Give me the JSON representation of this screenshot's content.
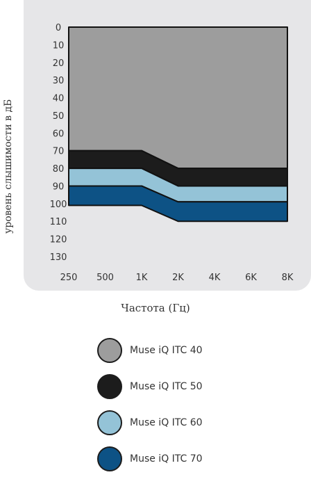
{
  "chart_data": {
    "type": "area",
    "categories": [
      "250",
      "500",
      "1K",
      "2K",
      "4K",
      "6K",
      "8K"
    ],
    "ylabel": "уровень слышимости в дБ",
    "xlabel": "Частота (Гц)",
    "ylim": [
      0,
      130
    ],
    "yticks": [
      "0",
      "10",
      "20",
      "30",
      "40",
      "50",
      "60",
      "70",
      "80",
      "90",
      "100",
      "110",
      "120",
      "130"
    ],
    "y_inverted": true,
    "grid": false,
    "legend_placement": "bottom",
    "series": [
      {
        "name": "Muse iQ ITC 40",
        "color": "#9d9d9d",
        "values": [
          70,
          70,
          70,
          80,
          80,
          80,
          80
        ]
      },
      {
        "name": "Muse iQ ITC 50",
        "color": "#1c1c1c",
        "values": [
          80,
          80,
          80,
          90,
          90,
          90,
          90
        ]
      },
      {
        "name": "Muse iQ ITC 60",
        "color": "#94c3d7",
        "values": [
          90,
          90,
          90,
          99,
          99,
          99,
          99
        ]
      },
      {
        "name": "Muse iQ ITC 70",
        "color": "#0d5285",
        "values": [
          101,
          101,
          101,
          110,
          110,
          110,
          110
        ]
      }
    ]
  }
}
